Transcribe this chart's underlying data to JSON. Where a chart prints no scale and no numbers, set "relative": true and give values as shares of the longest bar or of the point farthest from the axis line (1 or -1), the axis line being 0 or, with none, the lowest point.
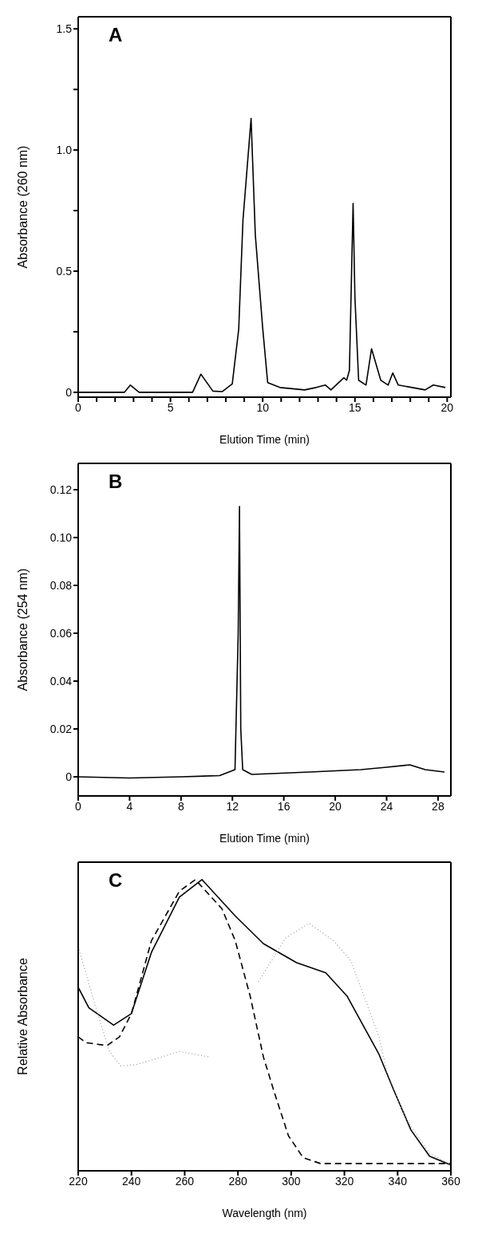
{
  "chart_data": [
    {
      "type": "line",
      "xlabel": "Elution Time (min)",
      "ylabel": "Absorbance (260 nm)",
      "annotations": [
        "A"
      ],
      "xlim": [
        0,
        20.2
      ],
      "ylim": [
        -0.02,
        1.55
      ],
      "xticks": [
        0,
        {
          "value": 1,
          "label": null
        },
        {
          "value": 2,
          "label": null
        },
        {
          "value": 3,
          "label": null
        },
        {
          "value": 4,
          "label": null
        },
        5,
        {
          "value": 6,
          "label": null
        },
        {
          "value": 7,
          "label": null
        },
        {
          "value": 8,
          "label": null
        },
        {
          "value": 9,
          "label": null
        },
        10,
        {
          "value": 11,
          "label": null
        },
        {
          "value": 12,
          "label": null
        },
        {
          "value": 13,
          "label": null
        },
        {
          "value": 14,
          "label": null
        },
        15,
        {
          "value": 16,
          "label": null
        },
        {
          "value": 17,
          "label": null
        },
        {
          "value": 18,
          "label": null
        },
        {
          "value": 19,
          "label": null
        },
        20
      ],
      "yticks": [
        0,
        {
          "value": 0.25,
          "label": null
        },
        0.5,
        {
          "value": 0.75,
          "label": null
        },
        {
          "value": 1,
          "label": "1.0"
        },
        {
          "value": 1.25,
          "label": null
        },
        1.5
      ],
      "series": [
        {
          "color": "#000000",
          "x": [
            0,
            2.5,
            2.83,
            3.3,
            6.2,
            6.65,
            7.3,
            7.8,
            8.35,
            8.7,
            8.93,
            9.37,
            9.6,
            10.0,
            10.27,
            10.93,
            12.27,
            12.9,
            13.4,
            13.7,
            14.4,
            14.55,
            14.7,
            14.9,
            15.0,
            15.2,
            15.6,
            15.9,
            16.4,
            16.8,
            17.05,
            17.35,
            18.1,
            18.8,
            19.25,
            19.9
          ],
          "values": [
            0,
            0,
            0.03,
            0,
            0,
            0.075,
            0.005,
            0.003,
            0.035,
            0.26,
            0.71,
            1.13,
            0.65,
            0.265,
            0.04,
            0.02,
            0.01,
            0.02,
            0.03,
            0.01,
            0.06,
            0.05,
            0.09,
            0.78,
            0.39,
            0.05,
            0.03,
            0.18,
            0.05,
            0.03,
            0.08,
            0.03,
            0.02,
            0.01,
            0.03,
            0.02
          ]
        }
      ]
    },
    {
      "type": "line",
      "xlabel": "Elution Time (min)",
      "ylabel": "Absorbance (254 nm)",
      "annotations": [
        "B"
      ],
      "xlim": [
        0,
        29
      ],
      "ylim": [
        -0.008,
        0.131
      ],
      "xticks": [
        0,
        4,
        8,
        12,
        16,
        20,
        24,
        28
      ],
      "yticks": [
        0,
        0.02,
        0.04,
        0.06,
        0.08,
        {
          "value": 0.1,
          "label": "0.10"
        },
        0.12
      ],
      "series": [
        {
          "color": "#000000",
          "x": [
            0,
            4,
            8,
            11,
            12.2,
            12.45,
            12.55,
            12.65,
            12.8,
            13.5,
            18,
            22,
            24,
            25.8,
            27,
            28.5
          ],
          "values": [
            0,
            -0.0005,
            0,
            0.0005,
            0.003,
            0.06,
            0.113,
            0.02,
            0.003,
            0.001,
            0.002,
            0.003,
            0.004,
            0.005,
            0.003,
            0.002
          ]
        }
      ]
    },
    {
      "type": "line",
      "xlabel": "Wavelength (nm)",
      "ylabel": "Relative Absorbance",
      "annotations": [
        "C"
      ],
      "relative": true,
      "tick_labels": "x",
      "xlim": [
        220,
        360
      ],
      "xticks": [
        220,
        240,
        260,
        280,
        300,
        320,
        340,
        360
      ],
      "series": [
        {
          "color": "#000000",
          "line_style": "solid",
          "x": [
            220,
            224,
            233.3,
            240,
            247.5,
            258,
            266.5,
            279,
            289.6,
            302,
            313,
            321,
            333,
            338.4,
            345,
            352,
            360
          ],
          "values": [
            0.63,
            0.56,
            0.5,
            0.54,
            0.75,
            0.94,
            1,
            0.875,
            0.78,
            0.715,
            0.68,
            0.6,
            0.4,
            0.28,
            0.14,
            0.05,
            0.02
          ]
        },
        {
          "color": "#000000",
          "line_style": "dashed",
          "x": [
            220,
            223,
            230.8,
            235.5,
            240,
            247.5,
            258,
            264,
            274,
            279,
            284.6,
            289.6,
            294,
            299,
            304.5,
            311,
            360
          ],
          "values": [
            0.46,
            0.44,
            0.43,
            0.46,
            0.54,
            0.79,
            0.96,
            1,
            0.9,
            0.79,
            0.6,
            0.39,
            0.26,
            0.12,
            0.045,
            0.025,
            0.025
          ]
        },
        {
          "color": "#999999",
          "line_style": "dotted",
          "x": [
            220,
            226,
            231.7,
            236,
            242,
            247.5,
            258,
            269.7,
            278,
            287.7,
            298,
            306.7,
            316,
            322.5,
            333,
            336,
            343,
            352,
            360
          ],
          "values": [
            0.77,
            0.58,
            0.41,
            0.36,
            0.365,
            0.38,
            0.41,
            0.39,
            null,
            0.65,
            0.8,
            0.85,
            0.79,
            0.72,
            0.46,
            0.34,
            0.18,
            0.06,
            0.02
          ]
        }
      ]
    }
  ]
}
